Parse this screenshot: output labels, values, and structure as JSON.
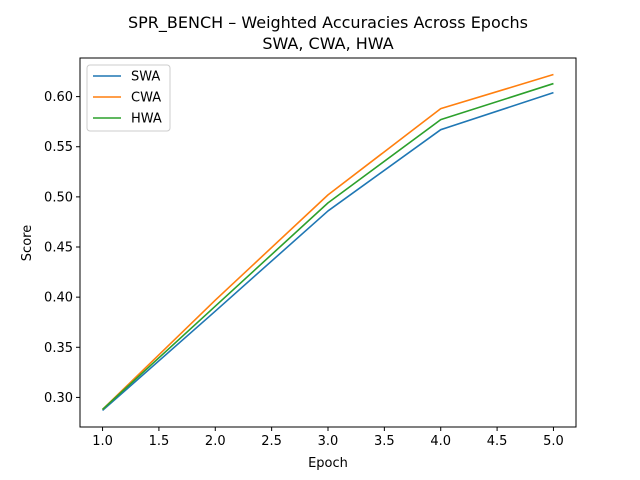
{
  "chart_data": {
    "type": "line",
    "title": "SPR_BENCH – Weighted Accuracies Across Epochs",
    "subtitle": "SWA, CWA, HWA",
    "xlabel": "Epoch",
    "ylabel": "Score",
    "x": [
      1.0,
      2.0,
      3.0,
      4.0,
      5.0
    ],
    "xlim": [
      0.8,
      5.2
    ],
    "ylim": [
      0.2705,
      0.6385
    ],
    "xticks": [
      1.0,
      1.5,
      2.0,
      2.5,
      3.0,
      3.5,
      4.0,
      4.5,
      5.0
    ],
    "xtick_labels": [
      "1.0",
      "1.5",
      "2.0",
      "2.5",
      "3.0",
      "3.5",
      "4.0",
      "4.5",
      "5.0"
    ],
    "yticks": [
      0.3,
      0.35,
      0.4,
      0.45,
      0.5,
      0.55,
      0.6
    ],
    "ytick_labels": [
      "0.30",
      "0.35",
      "0.40",
      "0.45",
      "0.50",
      "0.55",
      "0.60"
    ],
    "grid": false,
    "legend_position": "top-left",
    "series": [
      {
        "name": "SWA",
        "color": "#1f77b4",
        "values": [
          0.287,
          0.386,
          0.486,
          0.567,
          0.604
        ]
      },
      {
        "name": "CWA",
        "color": "#ff7f0e",
        "values": [
          0.288,
          0.397,
          0.502,
          0.588,
          0.622
        ]
      },
      {
        "name": "HWA",
        "color": "#2ca02c",
        "values": [
          0.288,
          0.391,
          0.494,
          0.577,
          0.613
        ]
      }
    ]
  }
}
